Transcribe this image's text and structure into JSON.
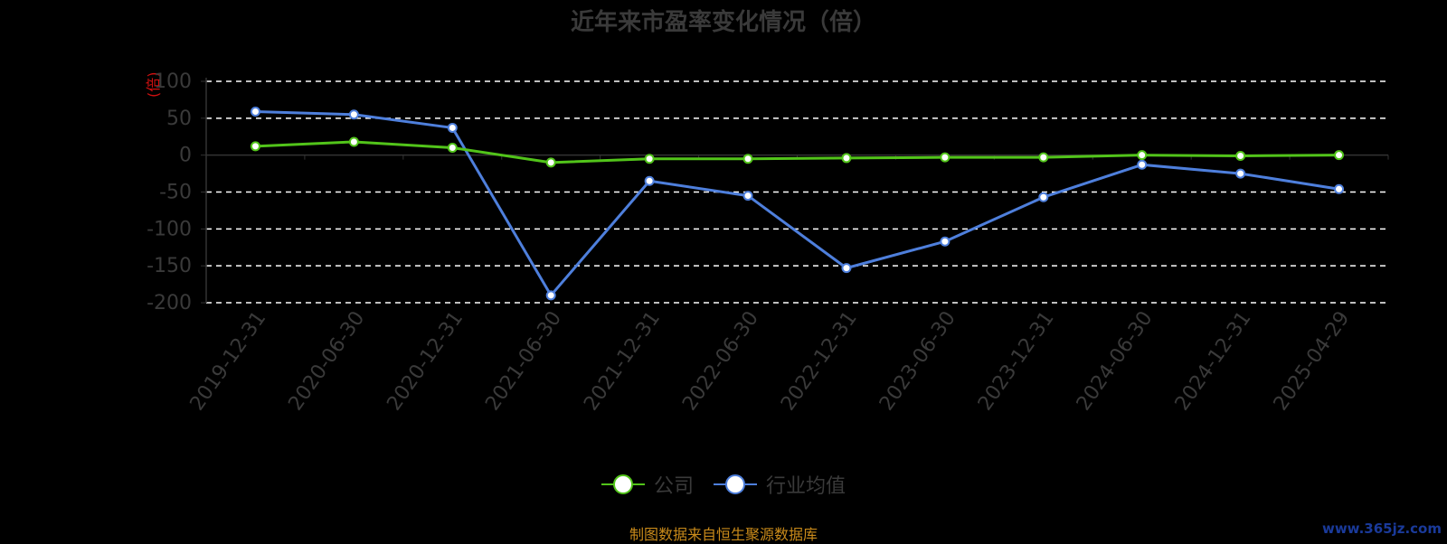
{
  "chart_data": {
    "type": "line",
    "title": "近年来市盈率变化情况（倍）",
    "ylabel": "(倍)",
    "categories": [
      "2019-12-31",
      "2020-06-30",
      "2020-12-31",
      "2021-06-30",
      "2021-12-31",
      "2022-06-30",
      "2022-12-31",
      "2023-06-30",
      "2023-12-31",
      "2024-06-30",
      "2024-12-31",
      "2025-04-29"
    ],
    "ylim": [
      -200,
      100
    ],
    "yticks": [
      100,
      50,
      0,
      -50,
      -100,
      -150,
      -200
    ],
    "grid": "dashed-horizontal",
    "series": [
      {
        "name": "公司",
        "color": "#52c41a",
        "values": [
          12,
          18,
          10,
          -10,
          -5,
          -5,
          -4,
          -3,
          -3,
          0,
          -1,
          0
        ]
      },
      {
        "name": "行业均值",
        "color": "#4e7fdc",
        "values": [
          59,
          55,
          37,
          -190,
          -35,
          -55,
          -153,
          -117,
          -57,
          -13,
          -25,
          -46
        ]
      }
    ],
    "legend_position": "bottom-center"
  },
  "source_note": "制图数据来自恒生聚源数据库",
  "watermark": "www.365jz.com"
}
